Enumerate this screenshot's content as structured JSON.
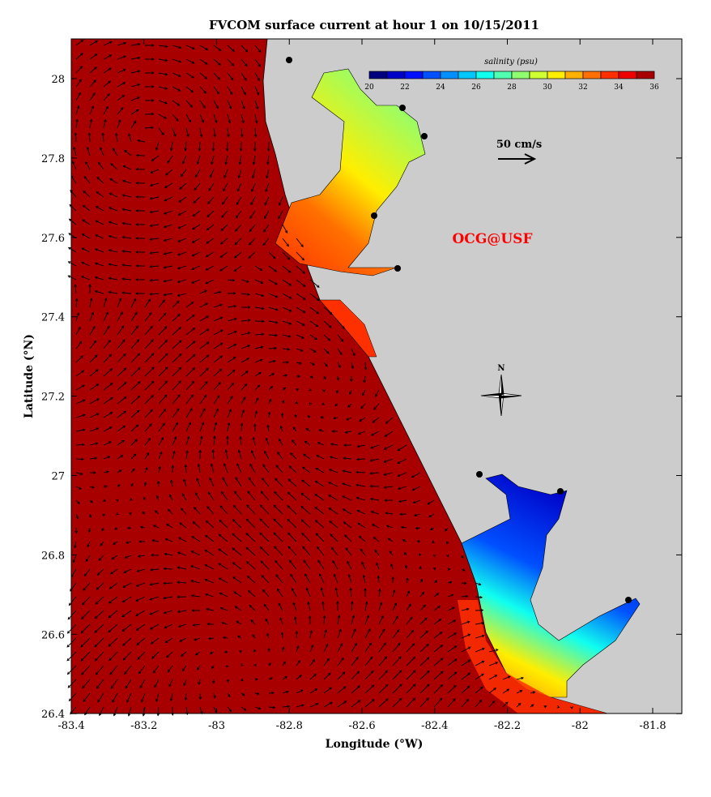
{
  "title": "FVCOM surface current at hour 1 on 10/15/2011",
  "xlabel": "Longitude (°W)",
  "ylabel": "Latitude (°N)",
  "x_ticks": [
    "-83.4",
    "-83.2",
    "-83",
    "-82.8",
    "-82.6",
    "-82.4",
    "-82.2",
    "-82",
    "-81.8"
  ],
  "y_ticks": [
    "28",
    "27.8",
    "27.6",
    "27.4",
    "27.2",
    "27",
    "26.8",
    "26.6",
    "26.4"
  ],
  "colorbar": {
    "title": "salinity (psu)",
    "labels": [
      "20",
      "22",
      "24",
      "26",
      "28",
      "30",
      "32",
      "34",
      "36"
    ],
    "range": [
      20,
      36
    ],
    "colors": [
      "#00007f",
      "#0000c8",
      "#0010ff",
      "#0050ff",
      "#0090ff",
      "#00c8ff",
      "#10ffef",
      "#50ffaf",
      "#90ff6f",
      "#cfff30",
      "#ffee00",
      "#ffb000",
      "#ff7000",
      "#ff3000",
      "#ef0000",
      "#a80000"
    ]
  },
  "scale_arrow_label": "50 cm/s",
  "watermark": "OCG@USF",
  "north_label": "N",
  "colors": {
    "ocean": "#a80000",
    "land": "#cccccc",
    "watermark": "#ff0000"
  }
}
